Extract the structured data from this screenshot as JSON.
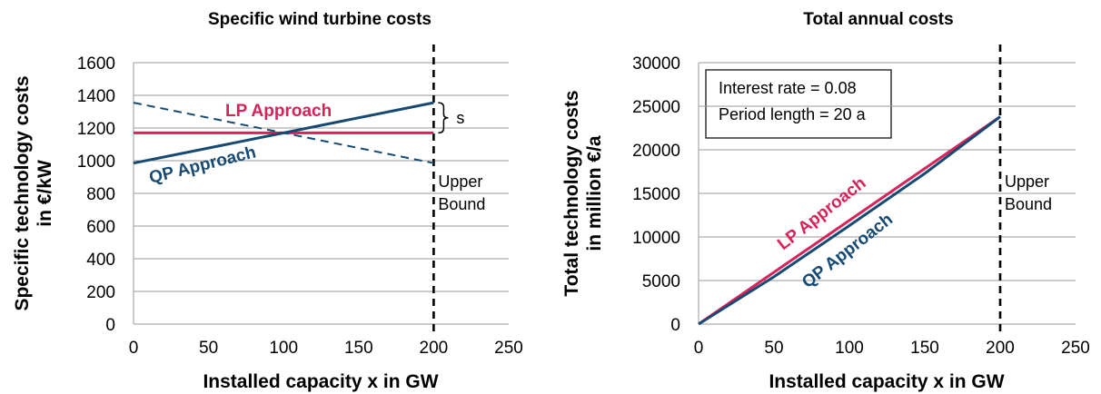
{
  "colors": {
    "lp": "#d8235a",
    "qp": "#174a72",
    "grid": "#9a9a9a",
    "bound": "#000000"
  },
  "chart_data": [
    {
      "type": "line",
      "title": "Specific wind turbine costs",
      "xlabel": "Installed capacity x in GW",
      "ylabel_lines": [
        "Specific technology costs",
        "in €/kW"
      ],
      "xlim": [
        0,
        250
      ],
      "ylim": [
        0,
        1600
      ],
      "xticks": [
        0,
        50,
        100,
        150,
        200,
        250
      ],
      "yticks": [
        0,
        200,
        400,
        600,
        800,
        1000,
        1200,
        1400,
        1600
      ],
      "grid": true,
      "upper_bound_x": 200,
      "upper_bound_label": [
        "Upper",
        "Bound"
      ],
      "series": [
        {
          "name": "LP Approach",
          "x": [
            0,
            200
          ],
          "y": [
            1170,
            1170
          ],
          "color": "#d8235a",
          "style": "solid"
        },
        {
          "name": "QP Approach",
          "x": [
            0,
            200
          ],
          "y": [
            985,
            1355
          ],
          "color": "#174a72",
          "style": "solid"
        },
        {
          "name": "",
          "x": [
            0,
            200
          ],
          "y": [
            1355,
            985
          ],
          "color": "#174a72",
          "style": "dashed"
        }
      ],
      "annotations": [
        {
          "text": "s",
          "bracket_y": [
            1170,
            1355
          ]
        }
      ]
    },
    {
      "type": "line",
      "title": "Total annual costs",
      "xlabel": "Installed capacity x in GW",
      "ylabel_lines": [
        "Total technology costs",
        "in million €/a"
      ],
      "xlim": [
        0,
        250
      ],
      "ylim": [
        0,
        30000
      ],
      "xticks": [
        0,
        50,
        100,
        150,
        200,
        250
      ],
      "yticks": [
        0,
        5000,
        10000,
        15000,
        20000,
        25000,
        30000
      ],
      "grid": true,
      "upper_bound_x": 200,
      "upper_bound_label": [
        "Upper",
        "Bound"
      ],
      "series": [
        {
          "name": "LP Approach",
          "x": [
            0,
            50,
            100,
            150,
            200
          ],
          "y": [
            0,
            5950,
            11900,
            17850,
            23800
          ],
          "color": "#d8235a",
          "style": "solid"
        },
        {
          "name": "QP Approach",
          "x": [
            0,
            50,
            100,
            150,
            200
          ],
          "y": [
            0,
            5430,
            11300,
            17280,
            23800
          ],
          "color": "#174a72",
          "style": "solid"
        }
      ],
      "legend_box": [
        "Interest rate  = 0.08",
        "Period length = 20 a"
      ]
    }
  ]
}
